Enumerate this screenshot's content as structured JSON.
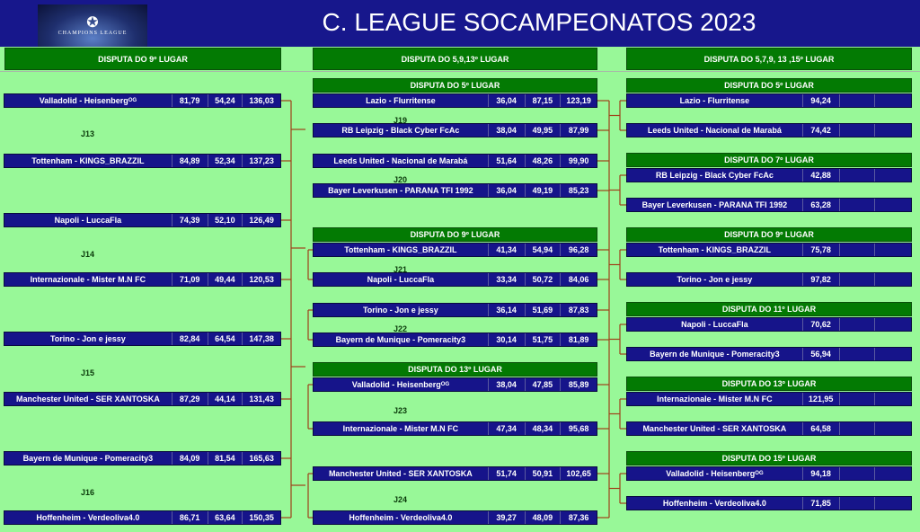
{
  "header": {
    "title": "C. LEAGUE SOCAMPEONATOS 2023",
    "logo_text": "CHAMPIONS LEAGUE",
    "logo_icon": "star-ball-icon"
  },
  "colors": {
    "title_bg": "#17178c",
    "header_green": "#037a03",
    "row_blue": "#16148a",
    "background": "#98f898",
    "connector": "#a0401a"
  },
  "columns": [
    {
      "title": "DISPUTA DO 9º LUGAR",
      "rounds": [
        "J13",
        "J14",
        "J15",
        "J16"
      ],
      "rows": [
        [
          "Valladolid - Heisenbergᴼᴳ",
          "81,79",
          "54,24",
          "136,03"
        ],
        [
          "Tottenham - KINGS_BRAZZIL",
          "84,89",
          "52,34",
          "137,23"
        ],
        [
          "Napoli - LuccaFla",
          "74,39",
          "52,10",
          "126,49"
        ],
        [
          "Internazionale - Mister M.N FC",
          "71,09",
          "49,44",
          "120,53"
        ],
        [
          "Torino - Jon e jessy",
          "82,84",
          "64,54",
          "147,38"
        ],
        [
          "Manchester United - SER XANTOSKA",
          "87,29",
          "44,14",
          "131,43"
        ],
        [
          "Bayern de Munique - Pomeracity3",
          "84,09",
          "81,54",
          "165,63"
        ],
        [
          "Hoffenheim - Verdeoliva4.0",
          "86,71",
          "63,64",
          "150,35"
        ]
      ]
    },
    {
      "title": "DISPUTA DO 5,9,13º LUGAR",
      "subheaders": [
        "DISPUTA DO 5º LUGAR",
        "DISPUTA DO 9º LUGAR",
        "DISPUTA DO 13º LUGAR"
      ],
      "rounds": [
        "J19",
        "J20",
        "J21",
        "J22",
        "J23",
        "J24"
      ],
      "rows": [
        [
          "Lazio - Flurritense",
          "36,04",
          "87,15",
          "123,19"
        ],
        [
          "RB Leipzig - Black Cyber FcAc",
          "38,04",
          "49,95",
          "87,99"
        ],
        [
          "Leeds United - Nacional de Marabá",
          "51,64",
          "48,26",
          "99,90"
        ],
        [
          "Bayer Leverkusen - PARANA TFI 1992",
          "36,04",
          "49,19",
          "85,23"
        ],
        [
          "Tottenham - KINGS_BRAZZIL",
          "41,34",
          "54,94",
          "96,28"
        ],
        [
          "Napoli - LuccaFla",
          "33,34",
          "50,72",
          "84,06"
        ],
        [
          "Torino - Jon e jessy",
          "36,14",
          "51,69",
          "87,83"
        ],
        [
          "Bayern de Munique - Pomeracity3",
          "30,14",
          "51,75",
          "81,89"
        ],
        [
          "Valladolid - Heisenbergᴼᴳ",
          "38,04",
          "47,85",
          "85,89"
        ],
        [
          "Internazionale - Mister M.N FC",
          "47,34",
          "48,34",
          "95,68"
        ],
        [
          "Manchester United - SER XANTOSKA",
          "51,74",
          "50,91",
          "102,65"
        ],
        [
          "Hoffenheim - Verdeoliva4.0",
          "39,27",
          "48,09",
          "87,36"
        ]
      ]
    },
    {
      "title": "DISPUTA DO 5,7,9, 13 ,15º LUGAR",
      "subheaders": [
        "DISPUTA DO 5º LUGAR",
        "DISPUTA DO 7º LUGAR",
        "DISPUTA DO 9º LUGAR",
        "DISPUTA DO 11º LUGAR",
        "DISPUTA DO 13º LUGAR",
        "DISPUTA DO 15º LUGAR"
      ],
      "rows": [
        [
          "Lazio - Flurritense",
          "94,24",
          "",
          ""
        ],
        [
          "Leeds United - Nacional de Marabá",
          "74,42",
          "",
          ""
        ],
        [
          "RB Leipzig - Black Cyber FcAc",
          "42,88",
          "",
          ""
        ],
        [
          "Bayer Leverkusen - PARANA TFI 1992",
          "63,28",
          "",
          ""
        ],
        [
          "Tottenham - KINGS_BRAZZIL",
          "75,78",
          "",
          ""
        ],
        [
          "Torino - Jon e jessy",
          "97,82",
          "",
          ""
        ],
        [
          "Napoli - LuccaFla",
          "70,62",
          "",
          ""
        ],
        [
          "Bayern de Munique - Pomeracity3",
          "56,94",
          "",
          ""
        ],
        [
          "Internazionale - Mister M.N FC",
          "121,95",
          "",
          ""
        ],
        [
          "Manchester United - SER XANTOSKA",
          "64,58",
          "",
          ""
        ],
        [
          "Valladolid - Heisenbergᴼᴳ",
          "94,18",
          "",
          ""
        ],
        [
          "Hoffenheim - Verdeoliva4.0",
          "71,85",
          "",
          ""
        ]
      ]
    }
  ]
}
